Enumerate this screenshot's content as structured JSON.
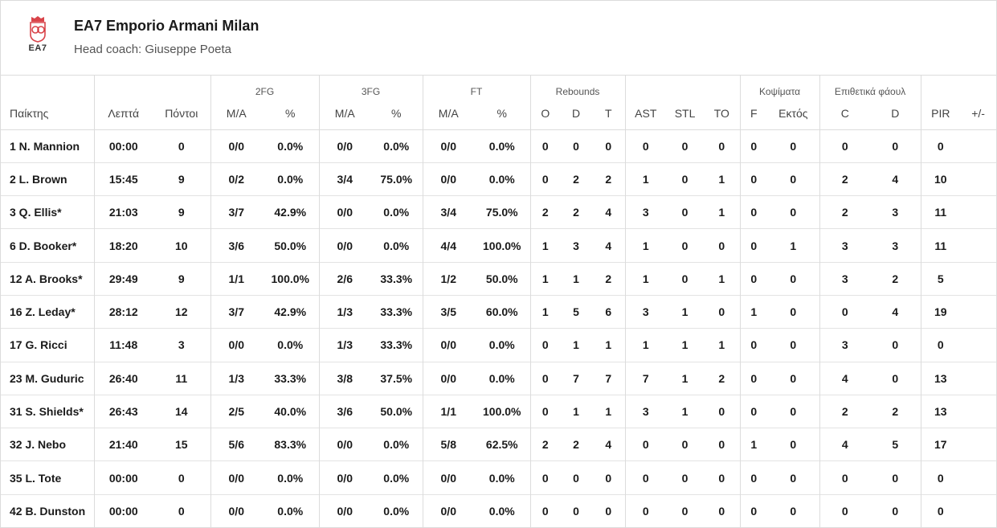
{
  "team": {
    "name": "EA7 Emporio Armani Milan",
    "coach": "Head coach: Giuseppe Poeta",
    "logo_text": "EA7",
    "logo_icon": "olimpia-milano-crest-icon",
    "logo_color": "#d2232a"
  },
  "groups": {
    "fg2": "2FG",
    "fg3": "3FG",
    "ft": "FT",
    "rebounds": "Rebounds",
    "blocks": "Κοψίματα",
    "fouls": "Επιθετικά φάουλ"
  },
  "columns": {
    "player": "Παίκτης",
    "minutes": "Λεπτά",
    "points": "Πόντοι",
    "fg2_ma": "M/A",
    "fg2_pct": "%",
    "fg3_ma": "M/A",
    "fg3_pct": "%",
    "ft_ma": "M/A",
    "ft_pct": "%",
    "reb_o": "O",
    "reb_d": "D",
    "reb_t": "T",
    "ast": "AST",
    "stl": "STL",
    "to": "TO",
    "blk_f": "F",
    "blk_ag": "Εκτός",
    "foul_c": "C",
    "foul_d": "D",
    "pir": "PIR",
    "pm": "+/-"
  },
  "players": [
    {
      "name": "1 N. Mannion",
      "min": "00:00",
      "pts": "0",
      "fg2": "0/0",
      "fg2p": "0.0%",
      "fg3": "0/0",
      "fg3p": "0.0%",
      "ft": "0/0",
      "ftp": "0.0%",
      "o": "0",
      "d": "0",
      "t": "0",
      "ast": "0",
      "stl": "0",
      "to": "0",
      "bf": "0",
      "ba": "0",
      "fc": "0",
      "fd": "0",
      "pir": "0",
      "pm": ""
    },
    {
      "name": "2 L. Brown",
      "min": "15:45",
      "pts": "9",
      "fg2": "0/2",
      "fg2p": "0.0%",
      "fg3": "3/4",
      "fg3p": "75.0%",
      "ft": "0/0",
      "ftp": "0.0%",
      "o": "0",
      "d": "2",
      "t": "2",
      "ast": "1",
      "stl": "0",
      "to": "1",
      "bf": "0",
      "ba": "0",
      "fc": "2",
      "fd": "4",
      "pir": "10",
      "pm": ""
    },
    {
      "name": "3 Q. Ellis*",
      "min": "21:03",
      "pts": "9",
      "fg2": "3/7",
      "fg2p": "42.9%",
      "fg3": "0/0",
      "fg3p": "0.0%",
      "ft": "3/4",
      "ftp": "75.0%",
      "o": "2",
      "d": "2",
      "t": "4",
      "ast": "3",
      "stl": "0",
      "to": "1",
      "bf": "0",
      "ba": "0",
      "fc": "2",
      "fd": "3",
      "pir": "11",
      "pm": ""
    },
    {
      "name": "6 D. Booker*",
      "min": "18:20",
      "pts": "10",
      "fg2": "3/6",
      "fg2p": "50.0%",
      "fg3": "0/0",
      "fg3p": "0.0%",
      "ft": "4/4",
      "ftp": "100.0%",
      "o": "1",
      "d": "3",
      "t": "4",
      "ast": "1",
      "stl": "0",
      "to": "0",
      "bf": "0",
      "ba": "1",
      "fc": "3",
      "fd": "3",
      "pir": "11",
      "pm": ""
    },
    {
      "name": "12 A. Brooks*",
      "min": "29:49",
      "pts": "9",
      "fg2": "1/1",
      "fg2p": "100.0%",
      "fg3": "2/6",
      "fg3p": "33.3%",
      "ft": "1/2",
      "ftp": "50.0%",
      "o": "1",
      "d": "1",
      "t": "2",
      "ast": "1",
      "stl": "0",
      "to": "1",
      "bf": "0",
      "ba": "0",
      "fc": "3",
      "fd": "2",
      "pir": "5",
      "pm": ""
    },
    {
      "name": "16 Z. Leday*",
      "min": "28:12",
      "pts": "12",
      "fg2": "3/7",
      "fg2p": "42.9%",
      "fg3": "1/3",
      "fg3p": "33.3%",
      "ft": "3/5",
      "ftp": "60.0%",
      "o": "1",
      "d": "5",
      "t": "6",
      "ast": "3",
      "stl": "1",
      "to": "0",
      "bf": "1",
      "ba": "0",
      "fc": "0",
      "fd": "4",
      "pir": "19",
      "pm": ""
    },
    {
      "name": "17 G. Ricci",
      "min": "11:48",
      "pts": "3",
      "fg2": "0/0",
      "fg2p": "0.0%",
      "fg3": "1/3",
      "fg3p": "33.3%",
      "ft": "0/0",
      "ftp": "0.0%",
      "o": "0",
      "d": "1",
      "t": "1",
      "ast": "1",
      "stl": "1",
      "to": "1",
      "bf": "0",
      "ba": "0",
      "fc": "3",
      "fd": "0",
      "pir": "0",
      "pm": ""
    },
    {
      "name": "23 M. Guduric",
      "min": "26:40",
      "pts": "11",
      "fg2": "1/3",
      "fg2p": "33.3%",
      "fg3": "3/8",
      "fg3p": "37.5%",
      "ft": "0/0",
      "ftp": "0.0%",
      "o": "0",
      "d": "7",
      "t": "7",
      "ast": "7",
      "stl": "1",
      "to": "2",
      "bf": "0",
      "ba": "0",
      "fc": "4",
      "fd": "0",
      "pir": "13",
      "pm": ""
    },
    {
      "name": "31 S. Shields*",
      "min": "26:43",
      "pts": "14",
      "fg2": "2/5",
      "fg2p": "40.0%",
      "fg3": "3/6",
      "fg3p": "50.0%",
      "ft": "1/1",
      "ftp": "100.0%",
      "o": "0",
      "d": "1",
      "t": "1",
      "ast": "3",
      "stl": "1",
      "to": "0",
      "bf": "0",
      "ba": "0",
      "fc": "2",
      "fd": "2",
      "pir": "13",
      "pm": ""
    },
    {
      "name": "32 J. Nebo",
      "min": "21:40",
      "pts": "15",
      "fg2": "5/6",
      "fg2p": "83.3%",
      "fg3": "0/0",
      "fg3p": "0.0%",
      "ft": "5/8",
      "ftp": "62.5%",
      "o": "2",
      "d": "2",
      "t": "4",
      "ast": "0",
      "stl": "0",
      "to": "0",
      "bf": "1",
      "ba": "0",
      "fc": "4",
      "fd": "5",
      "pir": "17",
      "pm": ""
    },
    {
      "name": "35 L. Tote",
      "min": "00:00",
      "pts": "0",
      "fg2": "0/0",
      "fg2p": "0.0%",
      "fg3": "0/0",
      "fg3p": "0.0%",
      "ft": "0/0",
      "ftp": "0.0%",
      "o": "0",
      "d": "0",
      "t": "0",
      "ast": "0",
      "stl": "0",
      "to": "0",
      "bf": "0",
      "ba": "0",
      "fc": "0",
      "fd": "0",
      "pir": "0",
      "pm": ""
    },
    {
      "name": "42 B. Dunston",
      "min": "00:00",
      "pts": "0",
      "fg2": "0/0",
      "fg2p": "0.0%",
      "fg3": "0/0",
      "fg3p": "0.0%",
      "ft": "0/0",
      "ftp": "0.0%",
      "o": "0",
      "d": "0",
      "t": "0",
      "ast": "0",
      "stl": "0",
      "to": "0",
      "bf": "0",
      "ba": "0",
      "fc": "0",
      "fd": "0",
      "pir": "0",
      "pm": ""
    }
  ]
}
